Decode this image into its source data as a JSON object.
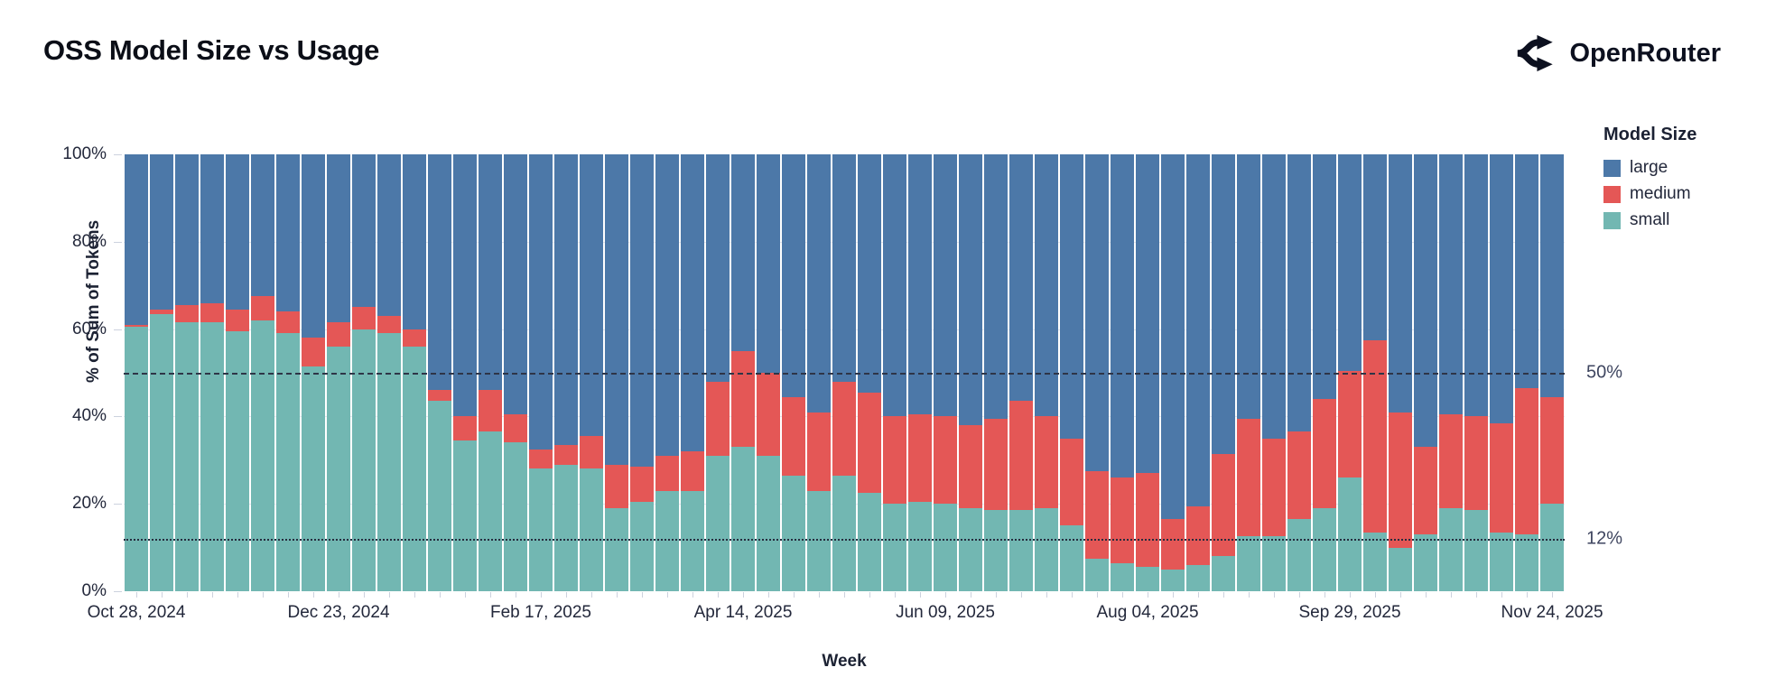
{
  "header": {
    "title": "OSS Model Size vs Usage",
    "brand": "OpenRouter"
  },
  "colors": {
    "large": "#4c78a8",
    "medium": "#e45756",
    "small": "#72b7b2",
    "grid": "#e4e6ef",
    "axis_text": "#23283b",
    "ref_label": "#3f4660",
    "background": "#ffffff"
  },
  "legend": {
    "title": "Model Size",
    "items": [
      {
        "label": "large",
        "color": "#4c78a8"
      },
      {
        "label": "medium",
        "color": "#e45756"
      },
      {
        "label": "small",
        "color": "#72b7b2"
      }
    ]
  },
  "chart_data": {
    "type": "bar",
    "stacked": true,
    "normalized": true,
    "title": "OSS Model Size vs Usage",
    "xlabel": "Week",
    "ylabel": "% of Sum of Tokens",
    "ylim": [
      0,
      100
    ],
    "grid": true,
    "legend_position": "right",
    "y_ticks": [
      0,
      20,
      40,
      60,
      80,
      100
    ],
    "y_tick_labels": [
      "0%",
      "20%",
      "40%",
      "60%",
      "80%",
      "100%"
    ],
    "x_tick_indices": [
      0,
      8,
      16,
      24,
      32,
      40,
      48,
      56
    ],
    "x_tick_labels": [
      "Oct 28, 2024",
      "Dec 23, 2024",
      "Feb 17, 2025",
      "Apr 14, 2025",
      "Jun 09, 2025",
      "Aug 04, 2025",
      "Sep 29, 2025",
      "Nov 24, 2025"
    ],
    "reference_lines": [
      {
        "value": 50,
        "style": "dashed",
        "label": "50%"
      },
      {
        "value": 12,
        "style": "dotted",
        "label": "12%"
      }
    ],
    "categories": [
      "Oct 28, 2024",
      "Nov 04, 2024",
      "Nov 11, 2024",
      "Nov 18, 2024",
      "Nov 25, 2024",
      "Dec 02, 2024",
      "Dec 09, 2024",
      "Dec 16, 2024",
      "Dec 23, 2024",
      "Dec 30, 2024",
      "Jan 06, 2025",
      "Jan 13, 2025",
      "Jan 20, 2025",
      "Jan 27, 2025",
      "Feb 03, 2025",
      "Feb 10, 2025",
      "Feb 17, 2025",
      "Feb 24, 2025",
      "Mar 03, 2025",
      "Mar 10, 2025",
      "Mar 17, 2025",
      "Mar 24, 2025",
      "Mar 31, 2025",
      "Apr 07, 2025",
      "Apr 14, 2025",
      "Apr 21, 2025",
      "Apr 28, 2025",
      "May 05, 2025",
      "May 12, 2025",
      "May 19, 2025",
      "May 26, 2025",
      "Jun 02, 2025",
      "Jun 09, 2025",
      "Jun 16, 2025",
      "Jun 23, 2025",
      "Jun 30, 2025",
      "Jul 07, 2025",
      "Jul 14, 2025",
      "Jul 21, 2025",
      "Jul 28, 2025",
      "Aug 04, 2025",
      "Aug 11, 2025",
      "Aug 18, 2025",
      "Aug 25, 2025",
      "Sep 01, 2025",
      "Sep 08, 2025",
      "Sep 15, 2025",
      "Sep 22, 2025",
      "Sep 29, 2025",
      "Oct 06, 2025",
      "Oct 13, 2025",
      "Oct 20, 2025",
      "Oct 27, 2025",
      "Nov 03, 2025",
      "Nov 10, 2025",
      "Nov 17, 2025",
      "Nov 24, 2025"
    ],
    "series": [
      {
        "name": "small",
        "color": "#72b7b2",
        "values": [
          60.5,
          63.5,
          61.5,
          61.5,
          59.5,
          62,
          59,
          51.5,
          56,
          60,
          59,
          56,
          43.5,
          34.5,
          36.5,
          34,
          28,
          29,
          28,
          19,
          20.5,
          23,
          23,
          31,
          33,
          31,
          26.5,
          23,
          26.5,
          22.5,
          20,
          20.5,
          20,
          19,
          18.5,
          18.5,
          19,
          15,
          7.5,
          6.5,
          5.5,
          5,
          6,
          8,
          12.5,
          12.5,
          16.5,
          19,
          26,
          13.5,
          10,
          13,
          19,
          18.5,
          13.5,
          13,
          20
        ]
      },
      {
        "name": "medium",
        "color": "#e45756",
        "values": [
          0.5,
          1,
          4,
          4.5,
          5,
          5.5,
          5,
          6.5,
          5.5,
          5,
          4,
          4,
          2.5,
          5.5,
          9.5,
          6.5,
          4.5,
          4.5,
          7.5,
          10,
          8,
          8,
          9,
          17,
          22,
          19,
          18,
          18,
          21.5,
          23,
          20,
          20,
          20,
          19,
          21,
          25,
          21,
          20,
          20,
          19.5,
          21.5,
          11.5,
          13.5,
          23.5,
          27,
          22.5,
          20,
          25,
          24.5,
          44,
          31,
          20,
          21.5,
          21.5,
          25,
          33.5,
          24.5
        ]
      },
      {
        "name": "large",
        "color": "#4c78a8",
        "values": [
          39,
          35.5,
          34.5,
          34,
          35.5,
          32.5,
          36,
          42,
          38.5,
          35,
          37,
          40,
          54,
          60,
          54,
          59.5,
          67.5,
          66.5,
          64.5,
          71,
          71.5,
          69,
          68,
          52,
          45,
          50,
          55.5,
          59,
          52,
          54.5,
          60,
          59.5,
          60,
          62,
          60.5,
          56.5,
          60,
          65,
          72.5,
          74,
          73,
          83.5,
          80.5,
          68.5,
          60.5,
          65,
          63.5,
          56,
          49.5,
          42.5,
          59,
          67,
          59.5,
          60,
          61.5,
          53.5,
          55.5
        ]
      }
    ]
  }
}
